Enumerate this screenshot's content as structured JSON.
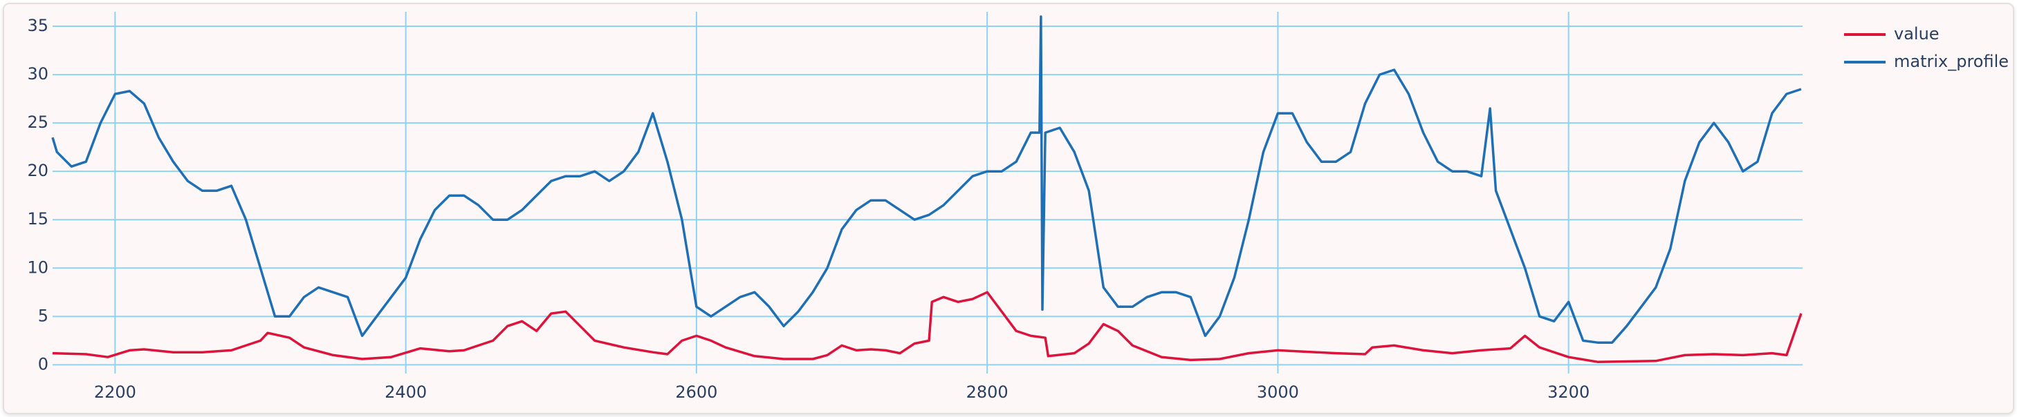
{
  "chart_data": {
    "type": "line",
    "xlim": [
      2157,
      3361
    ],
    "ylim": [
      -0.9,
      36.5
    ],
    "xticks": [
      2200,
      2400,
      2600,
      2800,
      3000,
      3200
    ],
    "yticks": [
      0,
      5,
      10,
      15,
      20,
      25,
      30,
      35
    ],
    "grid": true,
    "legend": "top-right",
    "series": [
      {
        "name": "value",
        "color": "#dc143c",
        "x": [
          2157,
          2180,
          2195,
          2210,
          2220,
          2240,
          2260,
          2280,
          2290,
          2300,
          2305,
          2320,
          2330,
          2350,
          2370,
          2390,
          2410,
          2430,
          2440,
          2460,
          2470,
          2480,
          2490,
          2500,
          2510,
          2520,
          2530,
          2550,
          2570,
          2580,
          2590,
          2600,
          2610,
          2620,
          2640,
          2660,
          2680,
          2690,
          2700,
          2710,
          2720,
          2730,
          2740,
          2750,
          2760,
          2762,
          2770,
          2780,
          2790,
          2800,
          2810,
          2820,
          2830,
          2840,
          2842,
          2860,
          2870,
          2880,
          2890,
          2900,
          2920,
          2940,
          2960,
          2980,
          3000,
          3040,
          3060,
          3065,
          3080,
          3100,
          3120,
          3140,
          3160,
          3170,
          3180,
          3200,
          3220,
          3260,
          3280,
          3300,
          3320,
          3340,
          3350,
          3360
        ],
        "values": [
          1.2,
          1.1,
          0.8,
          1.5,
          1.6,
          1.3,
          1.3,
          1.5,
          2,
          2.5,
          3.3,
          2.8,
          1.8,
          1,
          0.6,
          0.8,
          1.7,
          1.4,
          1.5,
          2.5,
          4,
          4.5,
          3.5,
          5.3,
          5.5,
          4,
          2.5,
          1.8,
          1.3,
          1.1,
          2.5,
          3,
          2.5,
          1.8,
          0.9,
          0.6,
          0.6,
          1,
          2,
          1.5,
          1.6,
          1.5,
          1.2,
          2.2,
          2.5,
          6.5,
          7,
          6.5,
          6.8,
          7.5,
          5.5,
          3.5,
          3,
          2.8,
          0.9,
          1.2,
          2.2,
          4.2,
          3.5,
          2,
          0.8,
          0.5,
          0.6,
          1.2,
          1.5,
          1.2,
          1.1,
          1.8,
          2,
          1.5,
          1.2,
          1.5,
          1.7,
          3,
          1.8,
          0.8,
          0.3,
          0.4,
          1,
          1.1,
          1,
          1.2,
          1,
          5.3
        ]
      },
      {
        "name": "matrix_profile",
        "color": "#1f6fb4",
        "x": [
          2157,
          2160,
          2170,
          2180,
          2190,
          2200,
          2210,
          2220,
          2230,
          2240,
          2250,
          2260,
          2270,
          2280,
          2290,
          2300,
          2310,
          2320,
          2330,
          2340,
          2350,
          2360,
          2370,
          2380,
          2390,
          2400,
          2410,
          2420,
          2430,
          2440,
          2450,
          2460,
          2470,
          2480,
          2490,
          2500,
          2510,
          2520,
          2530,
          2540,
          2550,
          2560,
          2570,
          2580,
          2590,
          2600,
          2610,
          2620,
          2630,
          2640,
          2650,
          2660,
          2670,
          2680,
          2690,
          2700,
          2710,
          2720,
          2730,
          2740,
          2750,
          2760,
          2770,
          2780,
          2790,
          2800,
          2810,
          2820,
          2830,
          2836,
          2837,
          2838,
          2840,
          2850,
          2860,
          2870,
          2880,
          2890,
          2900,
          2910,
          2920,
          2930,
          2940,
          2950,
          2960,
          2970,
          2980,
          2990,
          3000,
          3010,
          3020,
          3030,
          3040,
          3050,
          3060,
          3070,
          3080,
          3090,
          3100,
          3110,
          3120,
          3130,
          3140,
          3146,
          3150,
          3160,
          3170,
          3180,
          3190,
          3200,
          3210,
          3220,
          3230,
          3240,
          3250,
          3260,
          3270,
          3280,
          3290,
          3300,
          3310,
          3320,
          3330,
          3340,
          3350,
          3360
        ],
        "values": [
          23.5,
          22,
          20.5,
          21,
          25,
          28,
          28.3,
          27,
          23.5,
          21,
          19,
          18,
          18,
          18.5,
          15,
          10,
          5,
          5,
          7,
          8,
          7.5,
          7,
          3,
          5,
          7,
          9,
          13,
          16,
          17.5,
          17.5,
          16.5,
          15,
          15,
          16,
          17.5,
          19,
          19.5,
          19.5,
          20,
          19,
          20,
          22,
          26,
          21,
          15,
          6,
          5,
          6,
          7,
          7.5,
          6,
          4,
          5.5,
          7.5,
          10,
          14,
          16,
          17,
          17,
          16,
          15,
          15.5,
          16.5,
          18,
          19.5,
          20,
          20,
          21,
          24,
          24,
          36,
          5.7,
          24,
          24.5,
          22,
          18,
          8,
          6,
          6,
          7,
          7.5,
          7.5,
          7,
          3,
          5,
          9,
          15,
          22,
          26,
          26,
          23,
          21,
          21,
          22,
          27,
          30,
          30.5,
          28,
          24,
          21,
          20,
          20,
          19.5,
          26.5,
          18,
          14,
          10,
          5,
          4.5,
          6.5,
          2.5,
          2.3,
          2.3,
          4,
          6,
          8,
          12,
          19,
          23,
          25,
          23,
          20,
          21,
          26,
          28,
          28.5
        ]
      }
    ]
  }
}
